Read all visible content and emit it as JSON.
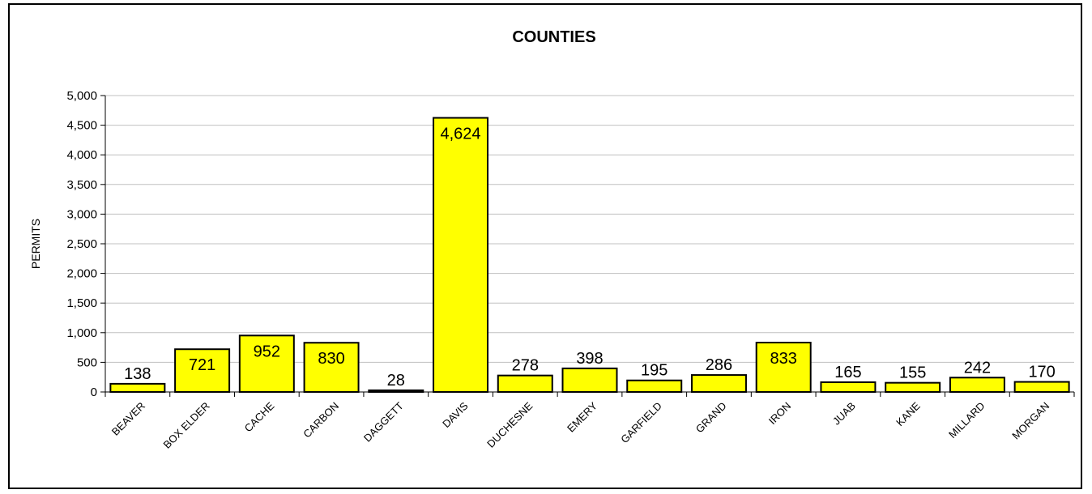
{
  "chart_data": {
    "type": "bar",
    "title": "COUNTIES",
    "xlabel": "",
    "ylabel": "PERMITS",
    "categories": [
      "BEAVER",
      "BOX ELDER",
      "CACHE",
      "CARBON",
      "DAGGETT",
      "DAVIS",
      "DUCHESNE",
      "EMERY",
      "GARFIELD",
      "GRAND",
      "IRON",
      "JUAB",
      "KANE",
      "MILLARD",
      "MORGAN"
    ],
    "values": [
      138,
      721,
      952,
      830,
      28,
      4624,
      278,
      398,
      195,
      286,
      833,
      165,
      155,
      242,
      170
    ],
    "data_labels": [
      "138",
      "721",
      "952",
      "830",
      "28",
      "4,624",
      "278",
      "398",
      "195",
      "286",
      "833",
      "165",
      "155",
      "242",
      "170"
    ],
    "ylim": [
      0,
      5000
    ],
    "yticks": [
      0,
      500,
      1000,
      1500,
      2000,
      2500,
      3000,
      3500,
      4000,
      4500,
      5000
    ],
    "ytick_labels": [
      "0",
      "500",
      "1,000",
      "1,500",
      "2,000",
      "2,500",
      "3,000",
      "3,500",
      "4,000",
      "4,500",
      "5,000"
    ],
    "grid": true,
    "legend": "none",
    "colors": {
      "bar": "#ffff00",
      "bar_border": "#000000",
      "grid": "#c0c0c0",
      "plot_background": "#ffffff"
    }
  }
}
